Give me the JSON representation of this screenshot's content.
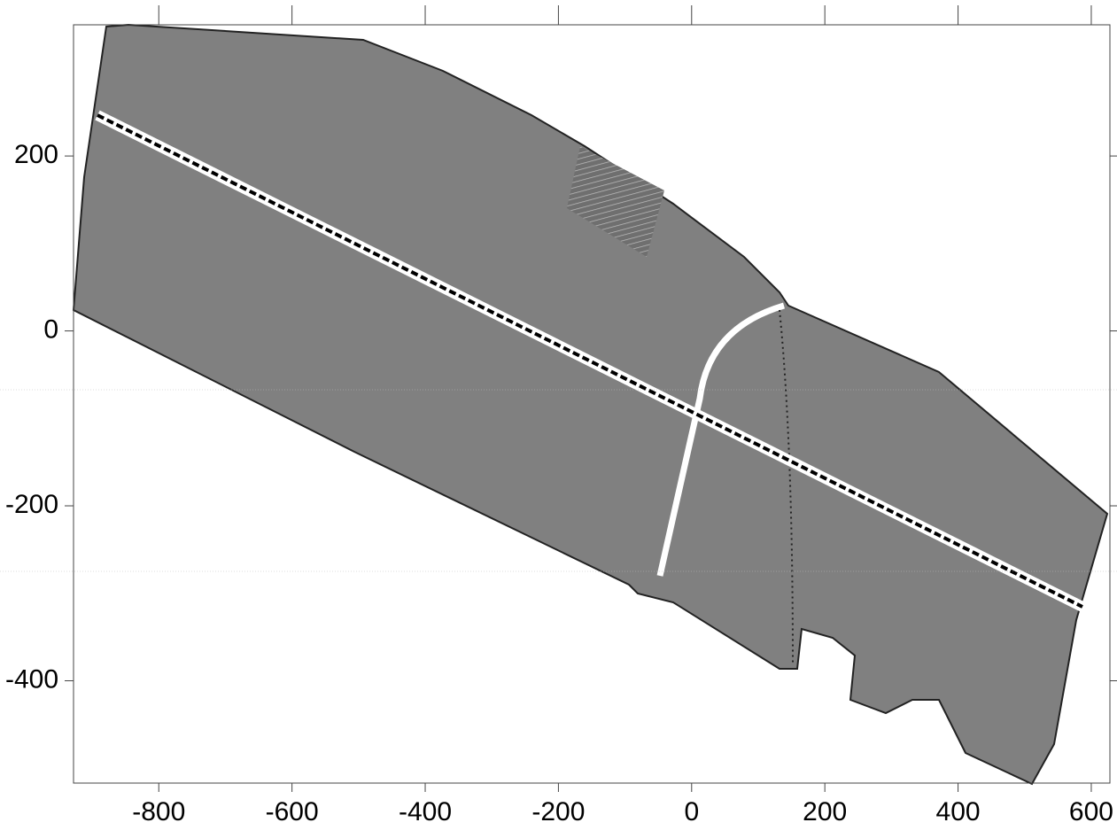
{
  "chart_data": {
    "type": "image",
    "xlim": [
      -928,
      628
    ],
    "ylim": [
      -517,
      350
    ],
    "xticks": [
      -800,
      -600,
      -400,
      -200,
      0,
      200,
      400,
      600
    ],
    "yticks": [
      -400,
      -200,
      0,
      200
    ]
  }
}
